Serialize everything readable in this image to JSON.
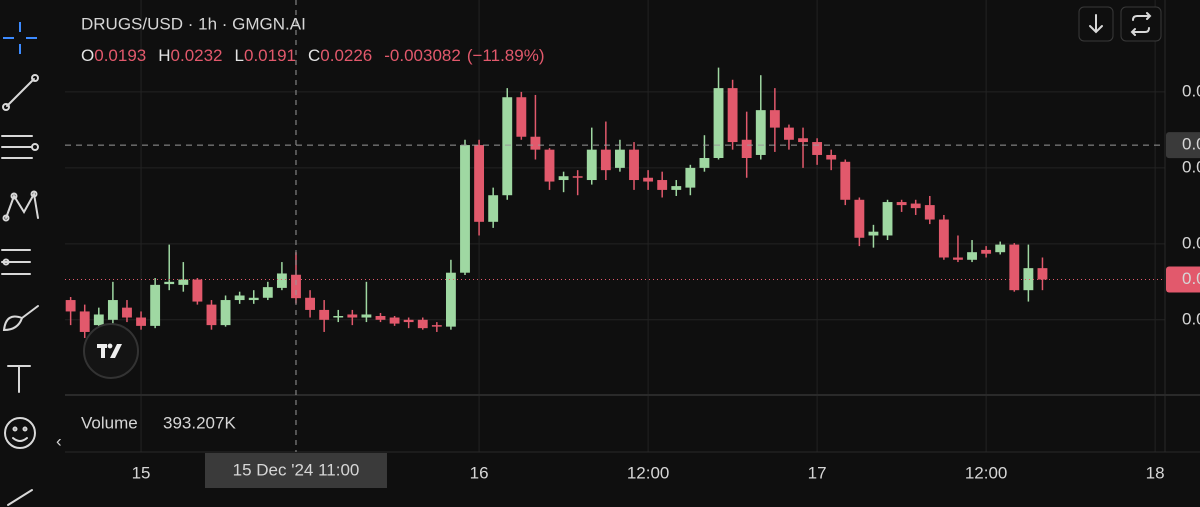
{
  "chart_data": {
    "type": "candlestick",
    "title": "DRUGS/USD · 1h · GMGN.AI",
    "ohlc_labels": [
      "O",
      "H",
      "L",
      "C"
    ],
    "legend_index": 11,
    "change": -0.003082,
    "change_percent": "(−11.89%)",
    "volume_label": "Volume",
    "volume_value": "393.207K",
    "up_color": "#9fd8a2",
    "down_color": "#e2596c",
    "grid": true,
    "x": [
      -5,
      -4,
      -3,
      -2,
      -1,
      0,
      1,
      2,
      3,
      4,
      5,
      6,
      7,
      8,
      9,
      10,
      11,
      12,
      13,
      14,
      15,
      16,
      17,
      18,
      19,
      20,
      21,
      22,
      23,
      24,
      25,
      26,
      27,
      28,
      29,
      30,
      31,
      32,
      33,
      34,
      35,
      36,
      37,
      38,
      39,
      40,
      41,
      42,
      43,
      44,
      45,
      46,
      47,
      48,
      49,
      50,
      51,
      52,
      53,
      54,
      55,
      56,
      57,
      58,
      59,
      60,
      61,
      62,
      63,
      64
    ],
    "open": [
      0.0226,
      0.0211,
      0.0193,
      0.02,
      0.0216,
      0.0203,
      0.0192,
      0.0247,
      0.0246,
      0.0253,
      0.022,
      0.0193,
      0.0226,
      0.0226,
      0.0229,
      0.0242,
      0.0259292,
      0.0229,
      0.0213,
      0.0203,
      0.0207,
      0.0203,
      0.0205,
      0.0203,
      0.02,
      0.02,
      0.0193,
      0.0191,
      0.0262,
      0.043,
      0.0329,
      0.0364,
      0.0493,
      0.0441,
      0.0424,
      0.0384,
      0.0389,
      0.0384,
      0.0424,
      0.04,
      0.0424,
      0.0387,
      0.0384,
      0.0371,
      0.0374,
      0.04,
      0.0413,
      0.0505,
      0.0437,
      0.0417,
      0.0476,
      0.0453,
      0.0439,
      0.0434,
      0.0417,
      0.0408,
      0.0358,
      0.0311,
      0.0311,
      0.0355,
      0.0353,
      0.0351,
      0.0332,
      0.0282,
      0.0279,
      0.0292,
      0.0289,
      0.0299,
      0.0239,
      0.0268
    ],
    "high": [
      0.023,
      0.022,
      0.0216,
      0.025,
      0.0226,
      0.0211,
      0.0255,
      0.0299,
      0.0276,
      0.0255,
      0.0226,
      0.0232,
      0.0237,
      0.0239,
      0.025,
      0.0276,
      0.0288941,
      0.0239,
      0.0226,
      0.0213,
      0.0213,
      0.025,
      0.0209,
      0.0205,
      0.0203,
      0.0203,
      0.0197,
      0.0279,
      0.0437,
      0.0437,
      0.0374,
      0.0505,
      0.05,
      0.0496,
      0.0426,
      0.0395,
      0.0397,
      0.0453,
      0.0461,
      0.0437,
      0.0434,
      0.0397,
      0.0395,
      0.0384,
      0.0404,
      0.0443,
      0.0532,
      0.0516,
      0.0474,
      0.0522,
      0.0505,
      0.0457,
      0.0453,
      0.0439,
      0.0424,
      0.0411,
      0.0361,
      0.0325,
      0.0358,
      0.0358,
      0.0358,
      0.0363,
      0.0338,
      0.0311,
      0.0305,
      0.0297,
      0.0303,
      0.0301,
      0.0299,
      0.0282
    ],
    "low": [
      0.0193,
      0.0176,
      0.0174,
      0.0193,
      0.0197,
      0.0187,
      0.0189,
      0.0239,
      0.0237,
      0.022,
      0.0187,
      0.0191,
      0.0221,
      0.0221,
      0.0226,
      0.0239,
      0.0221379,
      0.0203,
      0.0184,
      0.0197,
      0.0193,
      0.0197,
      0.0197,
      0.0192,
      0.0189,
      0.0187,
      0.0184,
      0.0187,
      0.0259,
      0.0311,
      0.0321,
      0.0358,
      0.0437,
      0.0411,
      0.0371,
      0.0368,
      0.0364,
      0.0378,
      0.0384,
      0.0395,
      0.0371,
      0.0371,
      0.0361,
      0.0363,
      0.0364,
      0.0395,
      0.0411,
      0.0424,
      0.0387,
      0.0411,
      0.0421,
      0.0424,
      0.04,
      0.0404,
      0.0397,
      0.0351,
      0.0297,
      0.0295,
      0.0305,
      0.0342,
      0.0338,
      0.0326,
      0.0279,
      0.0276,
      0.0276,
      0.0282,
      0.0286,
      0.0237,
      0.0224,
      0.0239
    ],
    "close": [
      0.0211,
      0.0184,
      0.0207,
      0.0226,
      0.0203,
      0.0192,
      0.0246,
      0.025,
      0.0253,
      0.0224,
      0.0193,
      0.0226,
      0.0232,
      0.0229,
      0.0243,
      0.0261,
      0.0228472,
      0.0213,
      0.02,
      0.0205,
      0.0203,
      0.0207,
      0.02,
      0.0195,
      0.0197,
      0.0189,
      0.0191,
      0.0262,
      0.043,
      0.0329,
      0.0364,
      0.0493,
      0.0441,
      0.0424,
      0.0382,
      0.0389,
      0.0387,
      0.0424,
      0.0397,
      0.0424,
      0.0384,
      0.0382,
      0.0371,
      0.0376,
      0.04,
      0.0413,
      0.0505,
      0.0434,
      0.0413,
      0.0476,
      0.0453,
      0.0437,
      0.0434,
      0.0417,
      0.0411,
      0.0358,
      0.0308,
      0.0316,
      0.0355,
      0.0351,
      0.0347,
      0.0332,
      0.0282,
      0.0279,
      0.0289,
      0.0287,
      0.0299,
      0.0239,
      0.0268,
      0.0253
    ],
    "xlim": [
      -5.4,
      72.7
    ],
    "ylim": [
      0.0101,
      0.0621
    ],
    "xticks": [
      {
        "value": 0,
        "label": "15"
      },
      {
        "value": 24,
        "label": "16"
      },
      {
        "value": 36,
        "label": "12:00"
      },
      {
        "value": 48,
        "label": "17"
      },
      {
        "value": 60,
        "label": "12:00"
      },
      {
        "value": 72,
        "label": "18"
      }
    ],
    "yticks": [
      {
        "value": 0.02,
        "label": "0.0"
      },
      {
        "value": 0.03,
        "label": "0.0"
      },
      {
        "value": 0.04,
        "label": "0.0"
      },
      {
        "value": 0.05,
        "label": "0.0"
      }
    ],
    "price_line": {
      "value": 0.0253,
      "label": "0.0"
    },
    "crosshair": {
      "x": 11,
      "y": 0.043,
      "x_label": "15 Dec '24  11:00",
      "y_label": "0.0"
    }
  }
}
